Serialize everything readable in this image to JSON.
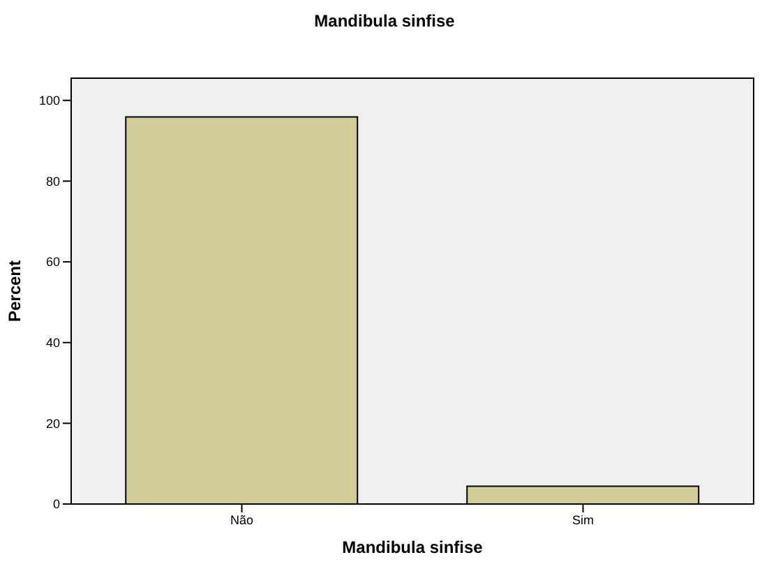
{
  "chart_data": {
    "type": "bar",
    "title": "Mandibula sinfise",
    "xlabel": "Mandibula sinfise",
    "ylabel": "Percent",
    "categories": [
      "Não",
      "Sim"
    ],
    "values": [
      95.9,
      4.4
    ],
    "color": "#d3ce98",
    "ylim": [
      0,
      105.5
    ],
    "yticks": [
      0,
      20,
      40,
      60,
      80,
      100
    ]
  }
}
